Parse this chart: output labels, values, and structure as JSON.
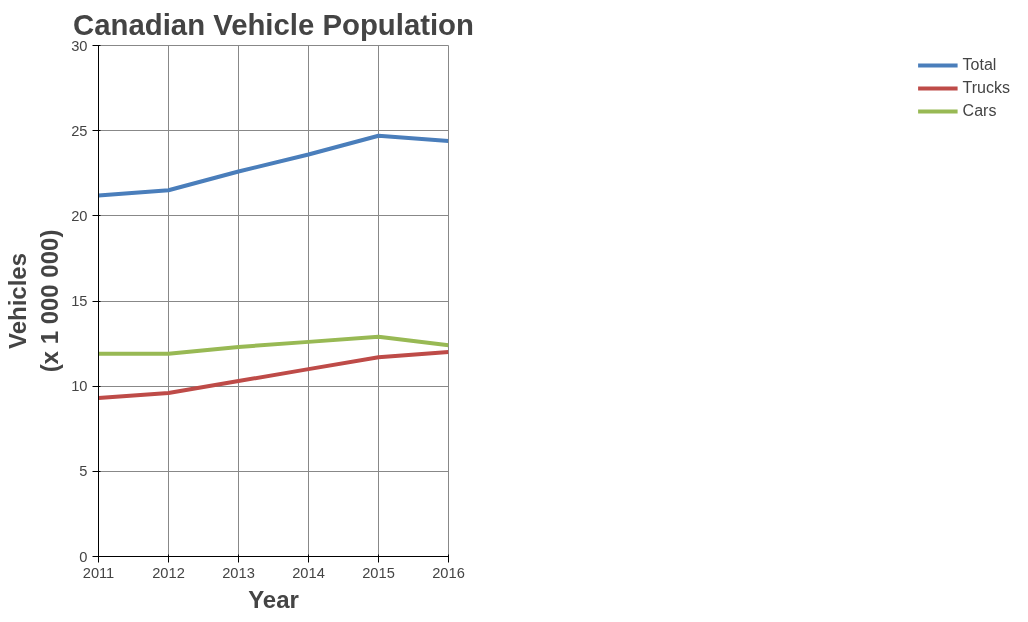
{
  "chart_data": {
    "type": "line",
    "title": "Canadian Vehicle Population",
    "xlabel": "Year",
    "ylabel": "Vehicles\n(x 1 000 000)",
    "x": [
      2011,
      2012,
      2013,
      2014,
      2015,
      2016
    ],
    "series": [
      {
        "name": "Total",
        "color": "#4a7ebb",
        "values": [
          21.2,
          21.5,
          22.6,
          23.6,
          24.7,
          24.4
        ]
      },
      {
        "name": "Trucks",
        "color": "#be4b48",
        "values": [
          9.3,
          9.6,
          10.3,
          11.0,
          11.7,
          12.0
        ]
      },
      {
        "name": "Cars",
        "color": "#98b954",
        "values": [
          11.9,
          11.9,
          12.3,
          12.6,
          12.9,
          12.4
        ]
      }
    ],
    "xlim": [
      2011,
      2016
    ],
    "xticks": [
      2011,
      2012,
      2013,
      2014,
      2015,
      2016
    ],
    "ylim": [
      0,
      30
    ],
    "yticks": [
      0,
      5,
      10,
      15,
      20,
      25,
      30
    ],
    "grid": true,
    "legend": "right",
    "marker": "none",
    "line_style": "solid"
  }
}
